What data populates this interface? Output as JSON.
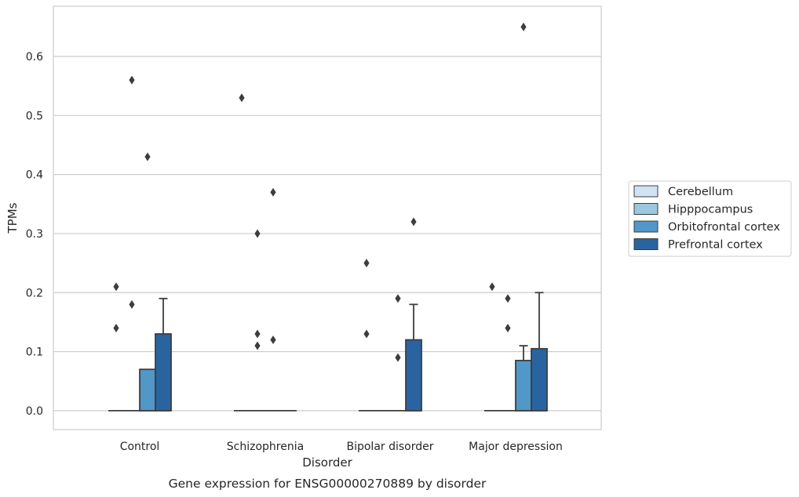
{
  "chart_data": {
    "type": "box",
    "title": "",
    "caption": "Gene expression for ENSG00000270889 by disorder",
    "xlabel": "Disorder",
    "ylabel": "TPMs",
    "ylim": [
      -0.032,
      0.685
    ],
    "yticks": [
      0.0,
      0.1,
      0.2,
      0.3,
      0.4,
      0.5,
      0.6
    ],
    "ytick_labels": [
      "0.0",
      "0.1",
      "0.2",
      "0.3",
      "0.4",
      "0.5",
      "0.6"
    ],
    "grid": "horizontal",
    "legend_position": "right",
    "categories": [
      "Control",
      "Schizophrenia",
      "Bipolar disorder",
      "Major depression"
    ],
    "series": [
      {
        "name": "Cerebellum",
        "color": "#d1e2f2",
        "boxes": [
          {
            "q1": 0,
            "median": 0,
            "q3": 0,
            "whisker_low": 0,
            "whisker_high": 0,
            "outliers": [
              0.21,
              0.14
            ]
          },
          {
            "q1": 0,
            "median": 0,
            "q3": 0,
            "whisker_low": 0,
            "whisker_high": 0,
            "outliers": [
              0.53
            ]
          },
          {
            "q1": 0,
            "median": 0,
            "q3": 0,
            "whisker_low": 0,
            "whisker_high": 0,
            "outliers": [
              0.25,
              0.13
            ]
          },
          {
            "q1": 0,
            "median": 0,
            "q3": 0,
            "whisker_low": 0,
            "whisker_high": 0,
            "outliers": [
              0.21
            ]
          }
        ]
      },
      {
        "name": "Hipppocampus",
        "color": "#9ac8e0",
        "boxes": [
          {
            "q1": 0,
            "median": 0,
            "q3": 0,
            "whisker_low": 0,
            "whisker_high": 0,
            "outliers": [
              0.56,
              0.18
            ]
          },
          {
            "q1": 0,
            "median": 0,
            "q3": 0,
            "whisker_low": 0,
            "whisker_high": 0,
            "outliers": [
              0.3,
              0.13,
              0.11
            ]
          },
          {
            "q1": 0,
            "median": 0,
            "q3": 0,
            "whisker_low": 0,
            "whisker_high": 0,
            "outliers": []
          },
          {
            "q1": 0,
            "median": 0,
            "q3": 0,
            "whisker_low": 0,
            "whisker_high": 0,
            "outliers": [
              0.19,
              0.14
            ]
          }
        ]
      },
      {
        "name": "Orbitofrontal cortex",
        "color": "#5198c8",
        "boxes": [
          {
            "q1": 0,
            "median": 0,
            "q3": 0.07,
            "whisker_low": 0,
            "whisker_high": 0.07,
            "outliers": [
              0.43
            ]
          },
          {
            "q1": 0,
            "median": 0,
            "q3": 0,
            "whisker_low": 0,
            "whisker_high": 0,
            "outliers": [
              0.37,
              0.12
            ]
          },
          {
            "q1": 0,
            "median": 0,
            "q3": 0,
            "whisker_low": 0,
            "whisker_high": 0,
            "outliers": [
              0.19,
              0.09
            ]
          },
          {
            "q1": 0,
            "median": 0,
            "q3": 0.085,
            "whisker_low": 0,
            "whisker_high": 0.11,
            "outliers": [
              0.65
            ]
          }
        ]
      },
      {
        "name": "Prefrontal cortex",
        "color": "#2a64a0",
        "boxes": [
          {
            "q1": 0,
            "median": 0,
            "q3": 0.13,
            "whisker_low": 0,
            "whisker_high": 0.19,
            "outliers": []
          },
          {
            "q1": 0,
            "median": 0,
            "q3": 0,
            "whisker_low": 0,
            "whisker_high": 0,
            "outliers": []
          },
          {
            "q1": 0,
            "median": 0,
            "q3": 0.12,
            "whisker_low": 0,
            "whisker_high": 0.18,
            "outliers": [
              0.32
            ]
          },
          {
            "q1": 0,
            "median": 0,
            "q3": 0.105,
            "whisker_low": 0,
            "whisker_high": 0.2,
            "outliers": []
          }
        ]
      }
    ]
  }
}
